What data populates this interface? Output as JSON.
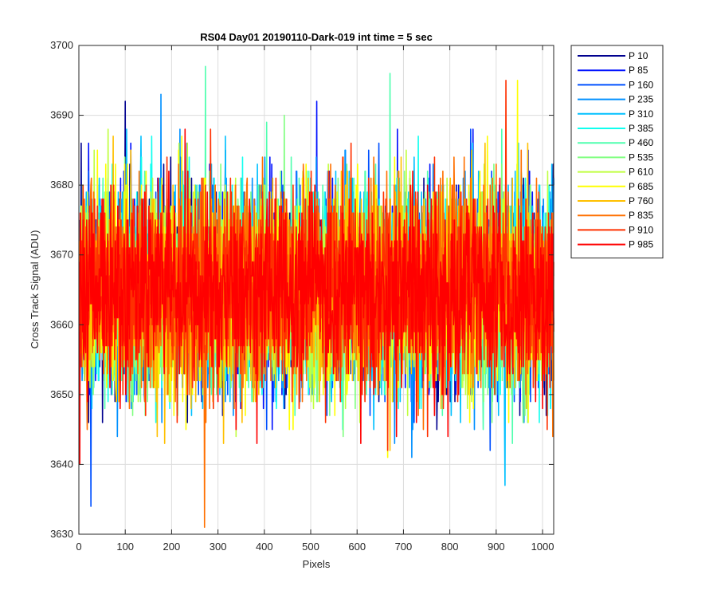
{
  "chart_data": {
    "type": "line",
    "title": "RS04 Day01 20190110-Dark-019 int time = 5 sec",
    "xlabel": "Pixels",
    "ylabel": "Cross Track Signal (ADU)",
    "xlim": [
      0,
      1024
    ],
    "ylim": [
      3630,
      3700
    ],
    "xticks": [
      0,
      100,
      200,
      300,
      400,
      500,
      600,
      700,
      800,
      900,
      1000
    ],
    "yticks": [
      3630,
      3640,
      3650,
      3660,
      3670,
      3680,
      3690,
      3700
    ],
    "grid": true,
    "legend_position": "outside-right",
    "noise_model": {
      "mean": 3665,
      "std": 7,
      "n_points": 1024
    },
    "series": [
      {
        "name": "P 10",
        "color": "#00008f"
      },
      {
        "name": "P 85",
        "color": "#0010ff"
      },
      {
        "name": "P 160",
        "color": "#0050ff"
      },
      {
        "name": "P 235",
        "color": "#0090ff"
      },
      {
        "name": "P 310",
        "color": "#00c0ff"
      },
      {
        "name": "P 385",
        "color": "#10ffef"
      },
      {
        "name": "P 460",
        "color": "#50ffaf"
      },
      {
        "name": "P 535",
        "color": "#80ff80"
      },
      {
        "name": "P 610",
        "color": "#c0ff40"
      },
      {
        "name": "P 685",
        "color": "#ffff00"
      },
      {
        "name": "P 760",
        "color": "#ffc000"
      },
      {
        "name": "P 835",
        "color": "#ff7000"
      },
      {
        "name": "P 910",
        "color": "#ff3000"
      },
      {
        "name": "P 985",
        "color": "#ff0000"
      }
    ],
    "extremes": [
      {
        "series": "P 835",
        "x": 270,
        "y": 3631
      },
      {
        "series": "P 460",
        "x": 272,
        "y": 3697
      },
      {
        "series": "P 910",
        "x": 920,
        "y": 3695
      },
      {
        "series": "P 685",
        "x": 945,
        "y": 3695
      },
      {
        "series": "P 160",
        "x": 25,
        "y": 3634
      },
      {
        "series": "P 85",
        "x": 512,
        "y": 3692
      },
      {
        "series": "P 460",
        "x": 670,
        "y": 3696
      },
      {
        "series": "P 310",
        "x": 918,
        "y": 3637
      }
    ]
  }
}
